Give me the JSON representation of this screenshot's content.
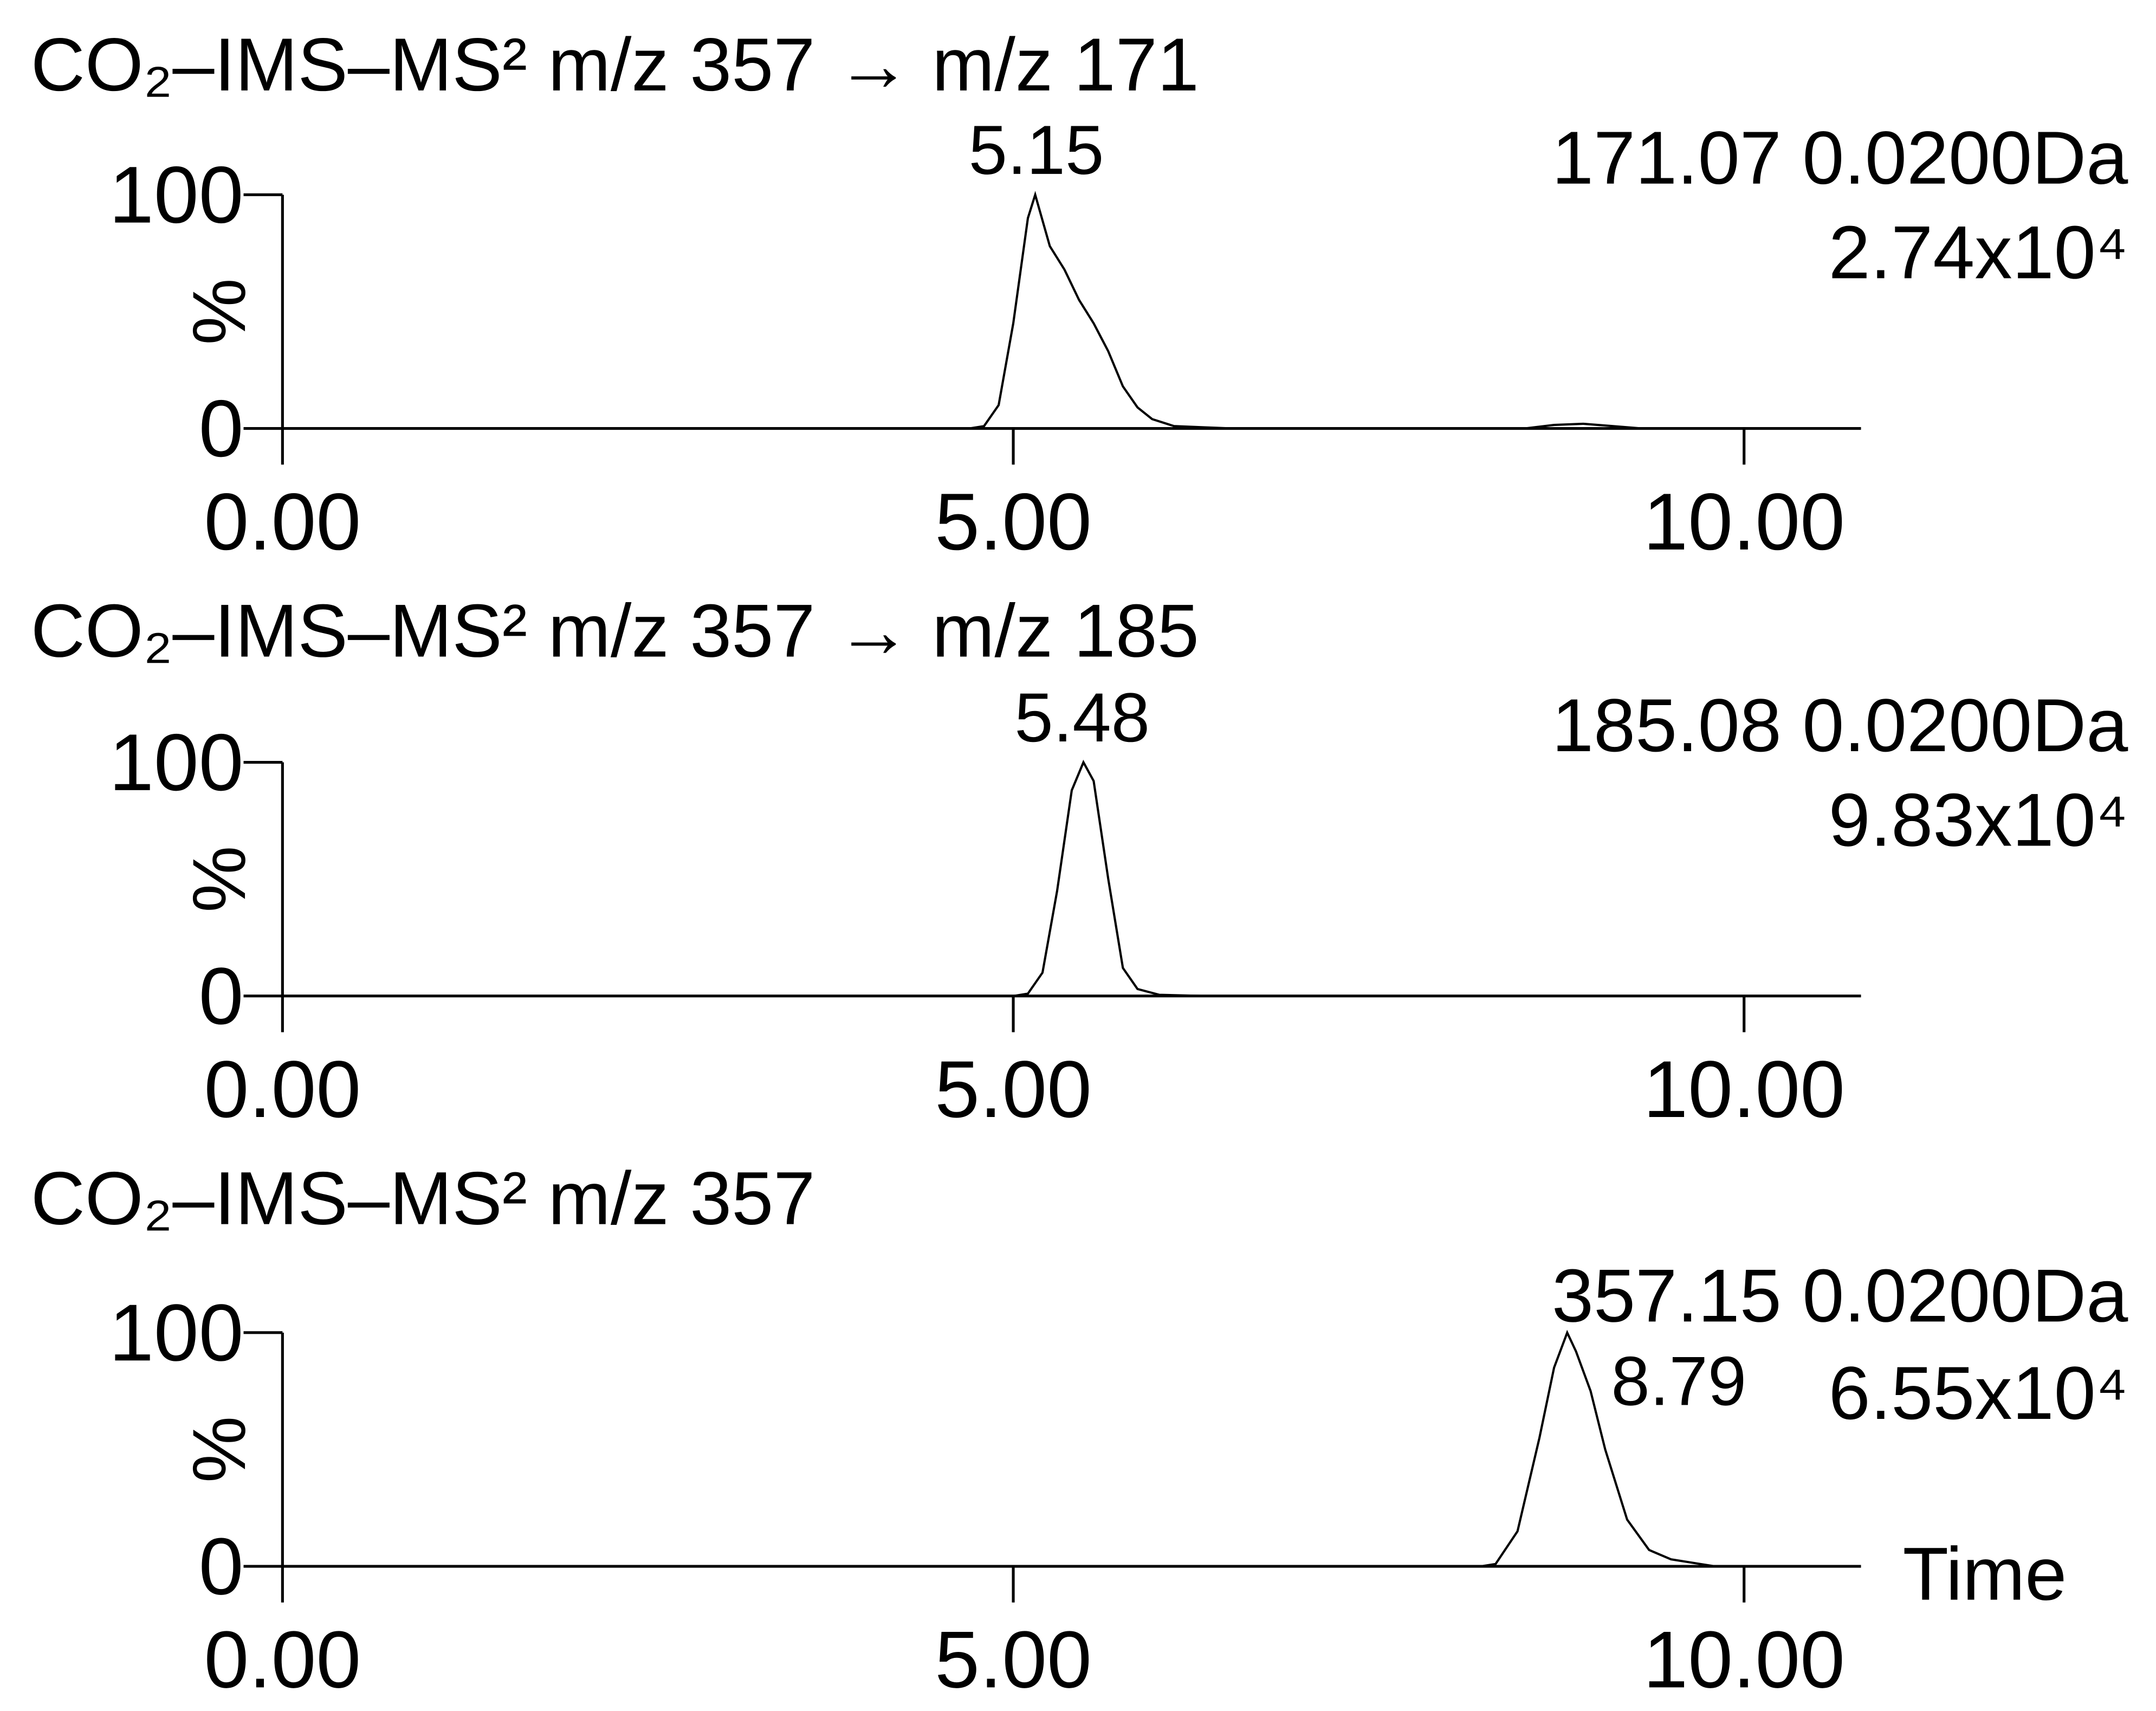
{
  "chart_data": [
    {
      "type": "line",
      "title": "CO₂–IMS–MS² m/z 357 → m/z 171",
      "peak_label": "5.15",
      "annotations": [
        "171.07 0.0200Da",
        "2.74x10⁴"
      ],
      "ylabel": "%",
      "x": [
        0,
        4.7,
        4.8,
        4.9,
        5.0,
        5.1,
        5.15,
        5.25,
        5.35,
        5.45,
        5.55,
        5.65,
        5.75,
        5.85,
        5.95,
        6.1,
        6.3,
        6.5,
        8.5,
        8.7,
        8.9,
        9.1,
        9.3,
        10.8
      ],
      "series": [
        {
          "color": "#000000",
          "values": [
            0,
            0,
            1,
            10,
            45,
            90,
            100,
            78,
            68,
            55,
            45,
            33,
            18,
            9,
            4,
            1,
            0.5,
            0,
            0,
            1.5,
            2,
            1,
            0,
            0
          ]
        }
      ],
      "xlim": [
        0,
        10.8
      ],
      "ylim": [
        0,
        100
      ],
      "xticks": [
        {
          "value": 0,
          "label": "0.00"
        },
        {
          "value": 5,
          "label": "5.00"
        },
        {
          "value": 10,
          "label": "10.00"
        }
      ],
      "yticks": [
        0,
        100
      ]
    },
    {
      "type": "line",
      "title": "CO₂–IMS–MS² m/z 357 → m/z 185",
      "peak_label": "5.48",
      "annotations": [
        "185.08 0.0200Da",
        "9.83x10⁴"
      ],
      "ylabel": "%",
      "x": [
        0,
        5.0,
        5.1,
        5.2,
        5.3,
        5.4,
        5.48,
        5.55,
        5.65,
        5.75,
        5.85,
        6.0,
        6.3,
        10.8
      ],
      "series": [
        {
          "color": "#000000",
          "values": [
            0,
            0,
            1,
            10,
            45,
            88,
            100,
            92,
            50,
            12,
            3,
            0.5,
            0,
            0
          ]
        }
      ],
      "xlim": [
        0,
        10.8
      ],
      "ylim": [
        0,
        100
      ],
      "xticks": [
        {
          "value": 0,
          "label": "0.00"
        },
        {
          "value": 5,
          "label": "5.00"
        },
        {
          "value": 10,
          "label": "10.00"
        }
      ],
      "yticks": [
        0,
        100
      ]
    },
    {
      "type": "line",
      "title": "CO₂–IMS–MS² m/z 357",
      "peak_label": "8.79",
      "annotations": [
        "357.15 0.0200Da",
        "6.55x10⁴"
      ],
      "ylabel": "%",
      "xlabel": "Time",
      "x": [
        0,
        8.2,
        8.3,
        8.45,
        8.6,
        8.7,
        8.79,
        8.85,
        8.95,
        9.05,
        9.2,
        9.35,
        9.5,
        9.7,
        9.8,
        10.8
      ],
      "series": [
        {
          "color": "#000000",
          "values": [
            0,
            0,
            1,
            15,
            55,
            85,
            100,
            92,
            75,
            50,
            20,
            7,
            3,
            1,
            0,
            0
          ]
        }
      ],
      "xlim": [
        0,
        10.8
      ],
      "ylim": [
        0,
        100
      ],
      "xticks": [
        {
          "value": 0,
          "label": "0.00"
        },
        {
          "value": 5,
          "label": "5.00"
        },
        {
          "value": 10,
          "label": "10.00"
        }
      ],
      "yticks": [
        0,
        100
      ]
    }
  ]
}
